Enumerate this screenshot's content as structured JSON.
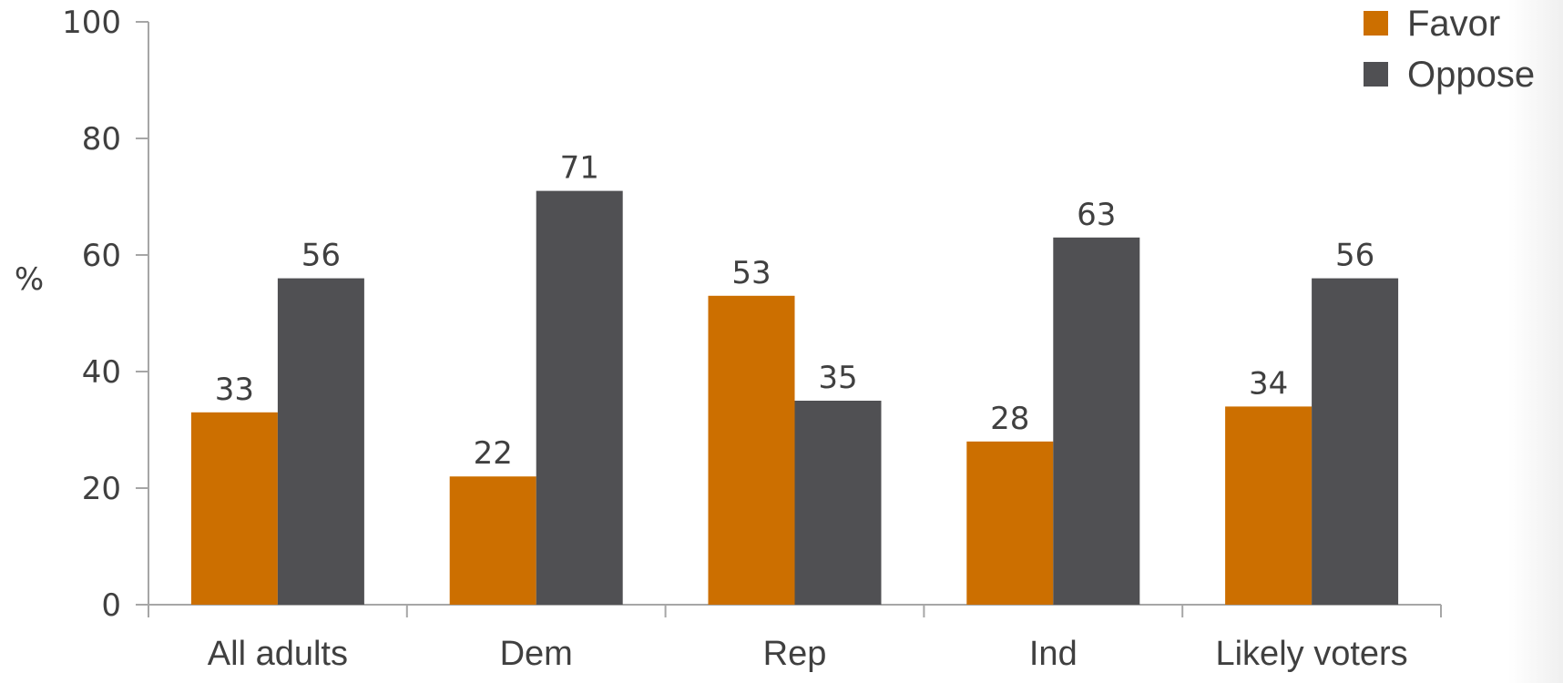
{
  "chart_data": {
    "type": "bar",
    "categories": [
      "All adults",
      "Dem",
      "Rep",
      "Ind",
      "Likely voters"
    ],
    "series": [
      {
        "name": "Favor",
        "values": [
          33,
          22,
          53,
          28,
          34
        ],
        "color": "#cc6f00"
      },
      {
        "name": "Oppose",
        "values": [
          56,
          71,
          35,
          63,
          56
        ],
        "color": "#505053"
      }
    ],
    "title": "",
    "xlabel": "",
    "ylabel": "%",
    "ylim": [
      0,
      100
    ],
    "yticks": [
      0,
      20,
      40,
      60,
      80,
      100
    ],
    "grid": false,
    "legend_position": "top-right",
    "data_labels": true
  }
}
